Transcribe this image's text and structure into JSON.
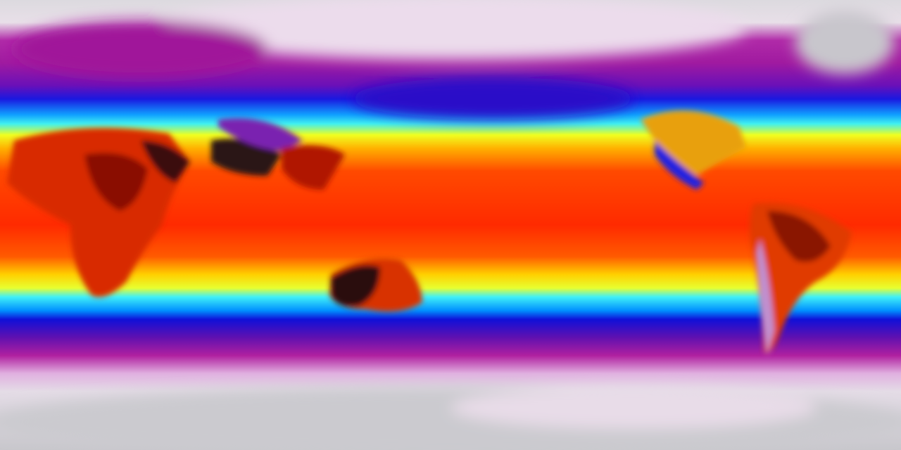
{
  "map": {
    "projection": "equirectangular",
    "variable_type": "temperature",
    "colormap": [
      "#d8d6dc",
      "#f2e6f2",
      "#c020a8",
      "#7a10b0",
      "#1010e0",
      "#00c0ff",
      "#80ffe0",
      "#ffff00",
      "#ffa000",
      "#ff3000",
      "#c01000",
      "#200808"
    ]
  }
}
